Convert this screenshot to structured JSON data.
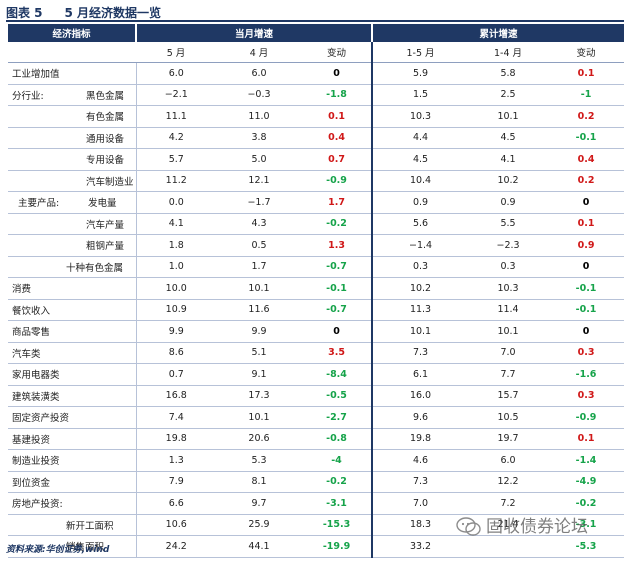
{
  "figure": {
    "number": "图表 5",
    "title": "5 月经济数据一览"
  },
  "headers": {
    "indicator": "经济指标",
    "group_month": "当月增速",
    "group_cum": "累计增速",
    "sub": [
      "5 月",
      "4 月",
      "变动",
      "1-5 月",
      "1-4 月",
      "变动"
    ]
  },
  "rows": [
    {
      "group": "",
      "label": "工业增加值",
      "v": [
        "6.0",
        "6.0",
        "0",
        "5.9",
        "5.8",
        "0.1"
      ]
    },
    {
      "group": "分行业:",
      "label": "黑色金属",
      "v": [
        "−2.1",
        "−0.3",
        "-1.8",
        "1.5",
        "2.5",
        "-1"
      ]
    },
    {
      "group": "",
      "label": "有色金属",
      "v": [
        "11.1",
        "11.0",
        "0.1",
        "10.3",
        "10.1",
        "0.2"
      ]
    },
    {
      "group": "",
      "label": "通用设备",
      "v": [
        "4.2",
        "3.8",
        "0.4",
        "4.4",
        "4.5",
        "-0.1"
      ]
    },
    {
      "group": "",
      "label": "专用设备",
      "v": [
        "5.7",
        "5.0",
        "0.7",
        "4.5",
        "4.1",
        "0.4"
      ]
    },
    {
      "group": "",
      "label": "汽车制造业",
      "v": [
        "11.2",
        "12.1",
        "-0.9",
        "10.4",
        "10.2",
        "0.2"
      ]
    },
    {
      "group": "主要产品:",
      "label": "发电量",
      "v": [
        "0.0",
        "−1.7",
        "1.7",
        "0.9",
        "0.9",
        "0"
      ]
    },
    {
      "group": "",
      "label": "汽车产量",
      "v": [
        "4.1",
        "4.3",
        "-0.2",
        "5.6",
        "5.5",
        "0.1"
      ]
    },
    {
      "group": "",
      "label": "粗钢产量",
      "v": [
        "1.8",
        "0.5",
        "1.3",
        "−1.4",
        "−2.3",
        "0.9"
      ]
    },
    {
      "group": "",
      "label": "十种有色金属",
      "v": [
        "1.0",
        "1.7",
        "-0.7",
        "0.3",
        "0.3",
        "0"
      ]
    },
    {
      "group": "",
      "label": "消费",
      "v": [
        "10.0",
        "10.1",
        "-0.1",
        "10.2",
        "10.3",
        "-0.1"
      ]
    },
    {
      "group": "",
      "label": "餐饮收入",
      "v": [
        "10.9",
        "11.6",
        "-0.7",
        "11.3",
        "11.4",
        "-0.1"
      ]
    },
    {
      "group": "",
      "label": "商品零售",
      "v": [
        "9.9",
        "9.9",
        "0",
        "10.1",
        "10.1",
        "0"
      ]
    },
    {
      "group": "",
      "label": "汽车类",
      "v": [
        "8.6",
        "5.1",
        "3.5",
        "7.3",
        "7.0",
        "0.3"
      ]
    },
    {
      "group": "",
      "label": "家用电器类",
      "v": [
        "0.7",
        "9.1",
        "-8.4",
        "6.1",
        "7.7",
        "-1.6"
      ]
    },
    {
      "group": "",
      "label": "建筑装潢类",
      "v": [
        "16.8",
        "17.3",
        "-0.5",
        "16.0",
        "15.7",
        "0.3"
      ]
    },
    {
      "group": "",
      "label": "固定资产投资",
      "v": [
        "7.4",
        "10.1",
        "-2.7",
        "9.6",
        "10.5",
        "-0.9"
      ]
    },
    {
      "group": "",
      "label": "基建投资",
      "v": [
        "19.8",
        "20.6",
        "-0.8",
        "19.8",
        "19.7",
        "0.1"
      ]
    },
    {
      "group": "",
      "label": "制造业投资",
      "v": [
        "1.3",
        "5.3",
        "-4",
        "4.6",
        "6.0",
        "-1.4"
      ]
    },
    {
      "group": "",
      "label": "到位资金",
      "v": [
        "7.9",
        "8.1",
        "-0.2",
        "7.3",
        "12.2",
        "-4.9"
      ]
    },
    {
      "group": "",
      "label": "房地产投资:",
      "v": [
        "6.6",
        "9.7",
        "-3.1",
        "7.0",
        "7.2",
        "-0.2"
      ]
    },
    {
      "group": "",
      "label": "新开工面积",
      "v": [
        "10.6",
        "25.9",
        "-15.3",
        "18.3",
        "21.4",
        "-3.1"
      ]
    },
    {
      "group": "",
      "label": "销售面积",
      "v": [
        "24.2",
        "44.1",
        "-19.9",
        "33.2",
        "",
        "-5.3"
      ]
    }
  ],
  "source": "资料来源:华创证券,wind",
  "watermark": "固收债券论坛",
  "colors": {
    "header_bg": "#1f3864",
    "positive": "#d01818",
    "negative": "#16a34a"
  }
}
